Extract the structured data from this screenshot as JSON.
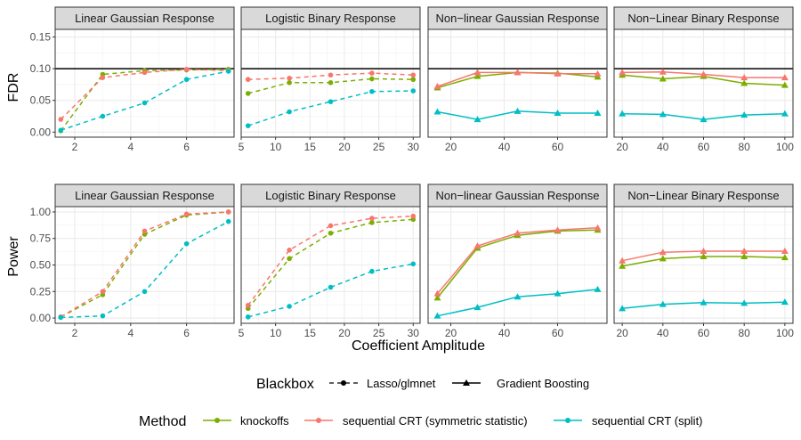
{
  "figure": {
    "x_axis_label": "Coefficient Amplitude",
    "row_labels": [
      "FDR",
      "Power"
    ],
    "fdr_target": 0.1
  },
  "legend": {
    "blackbox_title": "Blackbox",
    "blackbox_items": [
      {
        "label": "Lasso/glmnet",
        "linestyle": "dashed",
        "marker": "circle"
      },
      {
        "label": "Gradient Boosting",
        "linestyle": "solid",
        "marker": "triangle"
      }
    ],
    "method_title": "Method",
    "method_items": [
      {
        "label": "knockoffs",
        "color": "#7CAE00"
      },
      {
        "label": "sequential CRT (symmetric statistic)",
        "color": "#F8766D"
      },
      {
        "label": "sequential CRT (split)",
        "color": "#00BFC4"
      }
    ]
  },
  "chart_data": [
    {
      "type": "line",
      "row": "FDR",
      "panel_title": "Linear Gaussian Response",
      "blackbox": "Lasso/glmnet",
      "x": [
        1.5,
        3,
        4.5,
        6,
        7.5
      ],
      "xlim": [
        1.3,
        7.7
      ],
      "xticks": [
        "2",
        "4",
        "6"
      ],
      "ylim": [
        -0.008,
        0.162
      ],
      "yticks": [
        "0.00",
        "0.05",
        "0.10",
        "0.15"
      ],
      "series": [
        {
          "name": "knockoffs",
          "values": [
            0.002,
            0.091,
            0.097,
            0.098,
            0.099
          ]
        },
        {
          "name": "sequential CRT (symmetric statistic)",
          "values": [
            0.02,
            0.086,
            0.094,
            0.099,
            0.097
          ]
        },
        {
          "name": "sequential CRT (split)",
          "values": [
            0.003,
            0.025,
            0.046,
            0.083,
            0.096
          ]
        }
      ]
    },
    {
      "type": "line",
      "row": "FDR",
      "panel_title": "Logistic Binary Response",
      "blackbox": "Lasso/glmnet",
      "x": [
        6,
        12,
        18,
        24,
        30
      ],
      "xlim": [
        5,
        31
      ],
      "xticks": [
        "5",
        "10",
        "15",
        "20",
        "25",
        "30"
      ],
      "ylim": [
        -0.008,
        0.162
      ],
      "yticks": [
        "0.00",
        "0.05",
        "0.10",
        "0.15"
      ],
      "series": [
        {
          "name": "knockoffs",
          "values": [
            0.061,
            0.078,
            0.078,
            0.084,
            0.083
          ]
        },
        {
          "name": "sequential CRT (symmetric statistic)",
          "values": [
            0.083,
            0.085,
            0.09,
            0.093,
            0.09
          ]
        },
        {
          "name": "sequential CRT (split)",
          "values": [
            0.01,
            0.032,
            0.048,
            0.064,
            0.065
          ]
        }
      ]
    },
    {
      "type": "line",
      "row": "FDR",
      "panel_title": "Non−linear Gaussian Response",
      "blackbox": "Gradient Boosting",
      "x": [
        15,
        30,
        45,
        60,
        75
      ],
      "xlim": [
        11.5,
        78.5
      ],
      "xticks": [
        "20",
        "40",
        "60"
      ],
      "ylim": [
        -0.008,
        0.162
      ],
      "yticks": [
        "0.00",
        "0.05",
        "0.10",
        "0.15"
      ],
      "series": [
        {
          "name": "knockoffs",
          "values": [
            0.07,
            0.088,
            0.094,
            0.093,
            0.087
          ]
        },
        {
          "name": "sequential CRT (symmetric statistic)",
          "values": [
            0.072,
            0.094,
            0.094,
            0.092,
            0.092
          ]
        },
        {
          "name": "sequential CRT (split)",
          "values": [
            0.032,
            0.02,
            0.033,
            0.03,
            0.03
          ]
        }
      ]
    },
    {
      "type": "line",
      "row": "FDR",
      "panel_title": "Non−Linear Binary Response",
      "blackbox": "Gradient Boosting",
      "x": [
        20,
        40,
        60,
        80,
        100
      ],
      "xlim": [
        16,
        104
      ],
      "xticks": [
        "20",
        "40",
        "60",
        "80",
        "100"
      ],
      "ylim": [
        -0.008,
        0.162
      ],
      "yticks": [
        "0.00",
        "0.05",
        "0.10",
        "0.15"
      ],
      "series": [
        {
          "name": "knockoffs",
          "values": [
            0.09,
            0.084,
            0.088,
            0.077,
            0.074
          ]
        },
        {
          "name": "sequential CRT (symmetric statistic)",
          "values": [
            0.094,
            0.095,
            0.091,
            0.086,
            0.086
          ]
        },
        {
          "name": "sequential CRT (split)",
          "values": [
            0.029,
            0.028,
            0.02,
            0.027,
            0.029
          ]
        }
      ]
    },
    {
      "type": "line",
      "row": "Power",
      "panel_title": "Linear Gaussian Response",
      "blackbox": "Lasso/glmnet",
      "x": [
        1.5,
        3,
        4.5,
        6,
        7.5
      ],
      "xlim": [
        1.3,
        7.7
      ],
      "xticks": [
        "2",
        "4",
        "6"
      ],
      "ylim": [
        -0.05,
        1.05
      ],
      "yticks": [
        "0.00",
        "0.25",
        "0.50",
        "0.75",
        "1.00"
      ],
      "series": [
        {
          "name": "knockoffs",
          "values": [
            0.01,
            0.22,
            0.79,
            0.97,
            1.0
          ]
        },
        {
          "name": "sequential CRT (symmetric statistic)",
          "values": [
            0.01,
            0.25,
            0.82,
            0.98,
            1.0
          ]
        },
        {
          "name": "sequential CRT (split)",
          "values": [
            0.005,
            0.02,
            0.25,
            0.7,
            0.91
          ]
        }
      ]
    },
    {
      "type": "line",
      "row": "Power",
      "panel_title": "Logistic Binary Response",
      "blackbox": "Lasso/glmnet",
      "x": [
        6,
        12,
        18,
        24,
        30
      ],
      "xlim": [
        5,
        31
      ],
      "xticks": [
        "5",
        "10",
        "15",
        "20",
        "25",
        "30"
      ],
      "ylim": [
        -0.05,
        1.05
      ],
      "yticks": [
        "0.00",
        "0.25",
        "0.50",
        "0.75",
        "1.00"
      ],
      "series": [
        {
          "name": "knockoffs",
          "values": [
            0.09,
            0.56,
            0.8,
            0.9,
            0.93
          ]
        },
        {
          "name": "sequential CRT (symmetric statistic)",
          "values": [
            0.12,
            0.64,
            0.87,
            0.94,
            0.96
          ]
        },
        {
          "name": "sequential CRT (split)",
          "values": [
            0.01,
            0.11,
            0.29,
            0.44,
            0.51
          ]
        }
      ]
    },
    {
      "type": "line",
      "row": "Power",
      "panel_title": "Non−linear Gaussian Response",
      "blackbox": "Gradient Boosting",
      "x": [
        15,
        30,
        45,
        60,
        75
      ],
      "xlim": [
        11.5,
        78.5
      ],
      "xticks": [
        "20",
        "40",
        "60"
      ],
      "ylim": [
        -0.05,
        1.05
      ],
      "yticks": [
        "0.00",
        "0.25",
        "0.50",
        "0.75",
        "1.00"
      ],
      "series": [
        {
          "name": "knockoffs",
          "values": [
            0.19,
            0.66,
            0.78,
            0.82,
            0.83
          ]
        },
        {
          "name": "sequential CRT (symmetric statistic)",
          "values": [
            0.23,
            0.68,
            0.8,
            0.83,
            0.85
          ]
        },
        {
          "name": "sequential CRT (split)",
          "values": [
            0.02,
            0.1,
            0.2,
            0.23,
            0.27
          ]
        }
      ]
    },
    {
      "type": "line",
      "row": "Power",
      "panel_title": "Non−Linear Binary Response",
      "blackbox": "Gradient Boosting",
      "x": [
        20,
        40,
        60,
        80,
        100
      ],
      "xlim": [
        16,
        104
      ],
      "xticks": [
        "20",
        "40",
        "60",
        "80",
        "100"
      ],
      "ylim": [
        -0.05,
        1.05
      ],
      "yticks": [
        "0.00",
        "0.25",
        "0.50",
        "0.75",
        "1.00"
      ],
      "series": [
        {
          "name": "knockoffs",
          "values": [
            0.49,
            0.56,
            0.58,
            0.58,
            0.57
          ]
        },
        {
          "name": "sequential CRT (symmetric statistic)",
          "values": [
            0.54,
            0.62,
            0.63,
            0.63,
            0.63
          ]
        },
        {
          "name": "sequential CRT (split)",
          "values": [
            0.09,
            0.13,
            0.145,
            0.14,
            0.15
          ]
        }
      ]
    }
  ]
}
